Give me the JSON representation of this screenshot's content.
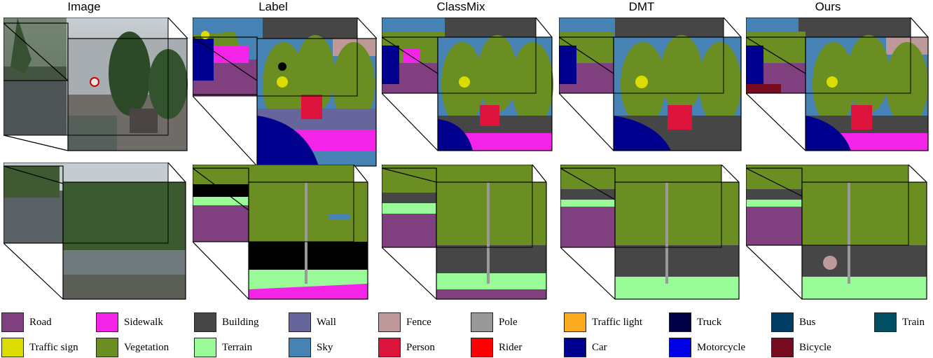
{
  "titles": {
    "image": "Image",
    "label": "Label",
    "classmix": "ClassMix",
    "dmt": "DMT",
    "ours": "Ours"
  },
  "legend": [
    {
      "label": "Road",
      "color": "#804080"
    },
    {
      "label": "Sidewalk",
      "color": "#f423e8"
    },
    {
      "label": "Building",
      "color": "#464646"
    },
    {
      "label": "Wall",
      "color": "#66669c"
    },
    {
      "label": "Fence",
      "color": "#be9999"
    },
    {
      "label": "Pole",
      "color": "#999999"
    },
    {
      "label": "Traffic light",
      "color": "#faaa1e"
    },
    {
      "label": "Truck",
      "color": "#000046"
    },
    {
      "label": "Bus",
      "color": "#003c64"
    },
    {
      "label": "Train",
      "color": "#005064"
    },
    {
      "label": "Traffic sign",
      "color": "#dcdc00"
    },
    {
      "label": "Vegetation",
      "color": "#6b8e23"
    },
    {
      "label": "Terrain",
      "color": "#98fb98"
    },
    {
      "label": "Sky",
      "color": "#4682b4"
    },
    {
      "label": "Person",
      "color": "#dc143c"
    },
    {
      "label": "Rider",
      "color": "#ff0000"
    },
    {
      "label": "Car",
      "color": "#00008e"
    },
    {
      "label": "Motorcycle",
      "color": "#0000e6"
    },
    {
      "label": "Bicycle",
      "color": "#770b20"
    }
  ]
}
